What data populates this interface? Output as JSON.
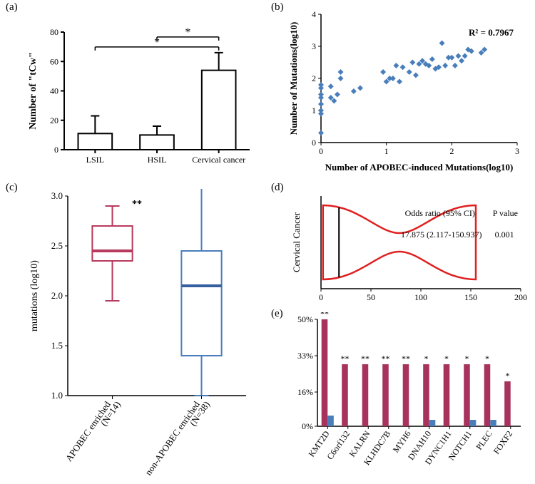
{
  "panel_a": {
    "label": "(a)",
    "type": "bar",
    "ylabel": "Number of \"tCw\"",
    "categories": [
      "LSIL",
      "HSIL",
      "Cervical cancer"
    ],
    "values": [
      11,
      10,
      54
    ],
    "errors": [
      12,
      6,
      12
    ],
    "ylim": [
      0,
      80
    ],
    "ytick_step": 20,
    "bar_fill": "#ffffff",
    "bar_stroke": "#000000",
    "error_color": "#000000",
    "sig_markers": [
      {
        "from": 0,
        "to": 2,
        "label": "*"
      },
      {
        "from": 1,
        "to": 2,
        "label": "*"
      }
    ],
    "label_fontsize": 12,
    "title_fontsize": 14
  },
  "panel_b": {
    "label": "(b)",
    "type": "scatter",
    "xlabel": "Number of APOBEC-induced Mutations(log10)",
    "ylabel": "Number of Mutations(log10)",
    "r2_label": "R² = 0.7967",
    "xlim": [
      0,
      3
    ],
    "ylim": [
      0,
      4
    ],
    "xtick_step": 1,
    "ytick_step": 1,
    "marker_color": "#4a7ebb",
    "marker_size": 4,
    "points": [
      [
        0.0,
        0.3
      ],
      [
        0.0,
        0.9
      ],
      [
        0.0,
        1.0
      ],
      [
        0.0,
        1.2
      ],
      [
        0.0,
        1.4
      ],
      [
        0.0,
        1.5
      ],
      [
        0.0,
        1.7
      ],
      [
        0.0,
        1.8
      ],
      [
        0.15,
        1.4
      ],
      [
        0.15,
        1.75
      ],
      [
        0.2,
        1.3
      ],
      [
        0.25,
        1.5
      ],
      [
        0.3,
        2.0
      ],
      [
        0.3,
        2.2
      ],
      [
        0.5,
        1.6
      ],
      [
        0.6,
        1.7
      ],
      [
        0.95,
        2.2
      ],
      [
        1.0,
        1.9
      ],
      [
        1.05,
        2.0
      ],
      [
        1.1,
        2.0
      ],
      [
        1.15,
        2.4
      ],
      [
        1.2,
        1.9
      ],
      [
        1.25,
        2.35
      ],
      [
        1.35,
        2.2
      ],
      [
        1.4,
        2.5
      ],
      [
        1.45,
        2.1
      ],
      [
        1.5,
        2.45
      ],
      [
        1.55,
        2.55
      ],
      [
        1.6,
        2.45
      ],
      [
        1.65,
        2.4
      ],
      [
        1.7,
        2.6
      ],
      [
        1.75,
        2.3
      ],
      [
        1.8,
        2.35
      ],
      [
        1.85,
        3.1
      ],
      [
        1.9,
        2.4
      ],
      [
        1.95,
        2.65
      ],
      [
        2.0,
        2.65
      ],
      [
        2.05,
        2.4
      ],
      [
        2.1,
        2.7
      ],
      [
        2.15,
        2.55
      ],
      [
        2.2,
        2.7
      ],
      [
        2.25,
        2.9
      ],
      [
        2.3,
        2.85
      ],
      [
        2.45,
        2.8
      ],
      [
        2.5,
        2.9
      ]
    ]
  },
  "panel_c": {
    "label": "(c)",
    "type": "boxplot",
    "ylabel": "mutations (log10)",
    "categories": [
      "APOBEC enriched\n(N=14)",
      "non-APOBEC enriched\n(N=38)"
    ],
    "ylim": [
      1.0,
      3.0
    ],
    "ytick_step": 0.5,
    "sig_label": "**",
    "boxes": [
      {
        "min": 1.95,
        "q1": 2.35,
        "median": 2.45,
        "q3": 2.7,
        "max": 2.9,
        "stroke": "#b83a5e",
        "median_color": "#b83a5e"
      },
      {
        "min": 1.0,
        "q1": 1.4,
        "median": 2.1,
        "q3": 2.45,
        "max": 3.1,
        "stroke": "#4a7ebb",
        "median_color": "#3560a0"
      }
    ]
  },
  "panel_d": {
    "label": "(d)",
    "type": "violin",
    "ylabel": "Cervical Cancer",
    "xlim": [
      0,
      200
    ],
    "xtick_step": 50,
    "stroke": "#e02020",
    "stats_labels": {
      "odds": "Odds ratio (95% CI)",
      "pval": "P value"
    },
    "stats_values": {
      "odds": "17.875 (2.117-150.937)",
      "pval": "0.001"
    }
  },
  "panel_e": {
    "label": "(e)",
    "type": "bar",
    "genes": [
      "KMT2D",
      "C6orf132",
      "KALRN",
      "KLHDC7B",
      "MYH6",
      "DNAH10",
      "DYNC1H1",
      "NOTCH1",
      "PLEC",
      "FOXF2"
    ],
    "series1": [
      50,
      29,
      29,
      29,
      29,
      29,
      29,
      29,
      29,
      21
    ],
    "series2": [
      5,
      0,
      0,
      0,
      0,
      3,
      0,
      3,
      3,
      0
    ],
    "sig": [
      "**",
      "**",
      "**",
      "**",
      "**",
      "*",
      "*",
      "*",
      "*",
      "*"
    ],
    "ylim": [
      0,
      50
    ],
    "yticks": [
      0,
      16,
      33,
      50
    ],
    "color1": "#a7335c",
    "color2": "#4a7ebb"
  }
}
